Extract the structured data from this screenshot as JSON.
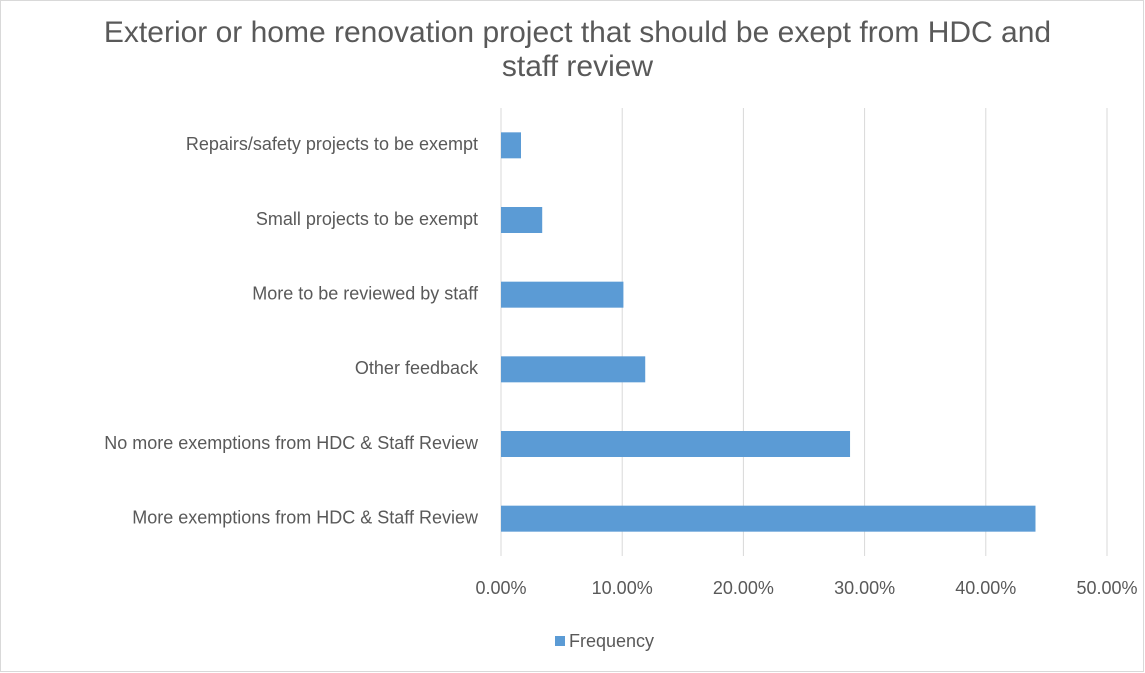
{
  "chart_data": {
    "type": "hbar",
    "title": "Exterior or home renovation project that should be exept from HDC and staff review",
    "categories": [
      "Repairs/safety projects to be exempt",
      "Small projects to be exempt",
      "More to be reviewed by staff",
      "Other feedback",
      "No more exemptions from HDC & Staff Review",
      "More exemptions from HDC & Staff Review"
    ],
    "series": [
      {
        "name": "Frequency",
        "color": "#5b9bd5",
        "values": [
          1.65,
          3.4,
          10.1,
          11.9,
          28.8,
          44.1
        ]
      }
    ],
    "xlim": [
      0,
      50
    ],
    "xticks": [
      {
        "value": 0,
        "label": "0.00%"
      },
      {
        "value": 10,
        "label": "10.00%"
      },
      {
        "value": 20,
        "label": "20.00%"
      },
      {
        "value": 30,
        "label": "30.00%"
      },
      {
        "value": 40,
        "label": "40.00%"
      },
      {
        "value": 50,
        "label": "50.00%"
      }
    ],
    "grid": true,
    "legend": "bottom"
  }
}
